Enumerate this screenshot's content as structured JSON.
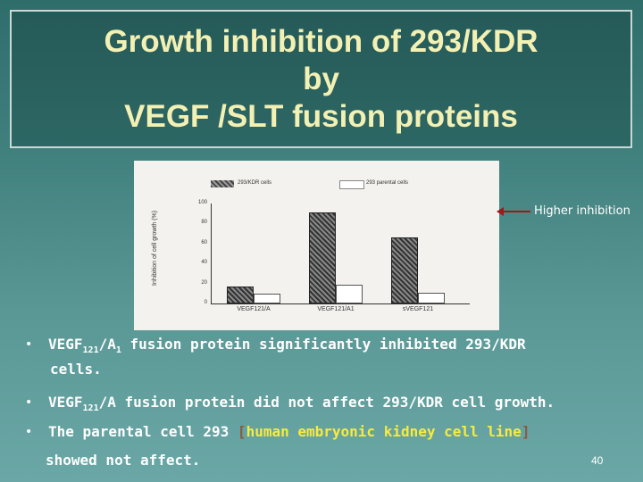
{
  "title": {
    "line1": "Growth inhibition of 293/KDR",
    "line2": "by",
    "line3": "VEGF /SLT fusion proteins"
  },
  "chart": {
    "legend": [
      "293/KDR cells",
      "293 parental cells"
    ],
    "ylabel": "Inhibition of cell growth (%)",
    "yticks": [
      "100",
      "80",
      "60",
      "40",
      "20",
      "0"
    ],
    "categories": [
      "VEGF121/A",
      "VEGF121/A1",
      "sVEGF121"
    ]
  },
  "chart_data": {
    "type": "bar",
    "categories": [
      "VEGF121/A",
      "VEGF121/A1",
      "sVEGF121"
    ],
    "series": [
      {
        "name": "293/KDR cells",
        "values": [
          17,
          91,
          66
        ]
      },
      {
        "name": "293 parental cells",
        "values": [
          10,
          19,
          11
        ]
      }
    ],
    "ylim": [
      0,
      100
    ],
    "ylabel": "Inhibition of cell growth (%)"
  },
  "annotation": "Higher inhibition",
  "bullets": {
    "b1_pre": "VEGF",
    "b1_sub": "121",
    "b1_mid": "/A",
    "b1_sub2": "1",
    "b1_post": " fusion protein significantly inhibited 293/KDR",
    "b1_cont": "cells.",
    "b2_pre": "VEGF",
    "b2_sub": "121",
    "b2_post": "/A fusion protein did not affect 293/KDR cell growth.",
    "b3_pre": "The parental cell 293 ",
    "b3_open": "[",
    "b3_hl": "human embryonic kidney cell line",
    "b3_close": "]",
    "b3_cont": "showed not affect."
  },
  "page_number": "40",
  "colors": {
    "title_text": "#f3f0b4",
    "highlight": "#f7ec3c",
    "arrow": "#a01818"
  }
}
